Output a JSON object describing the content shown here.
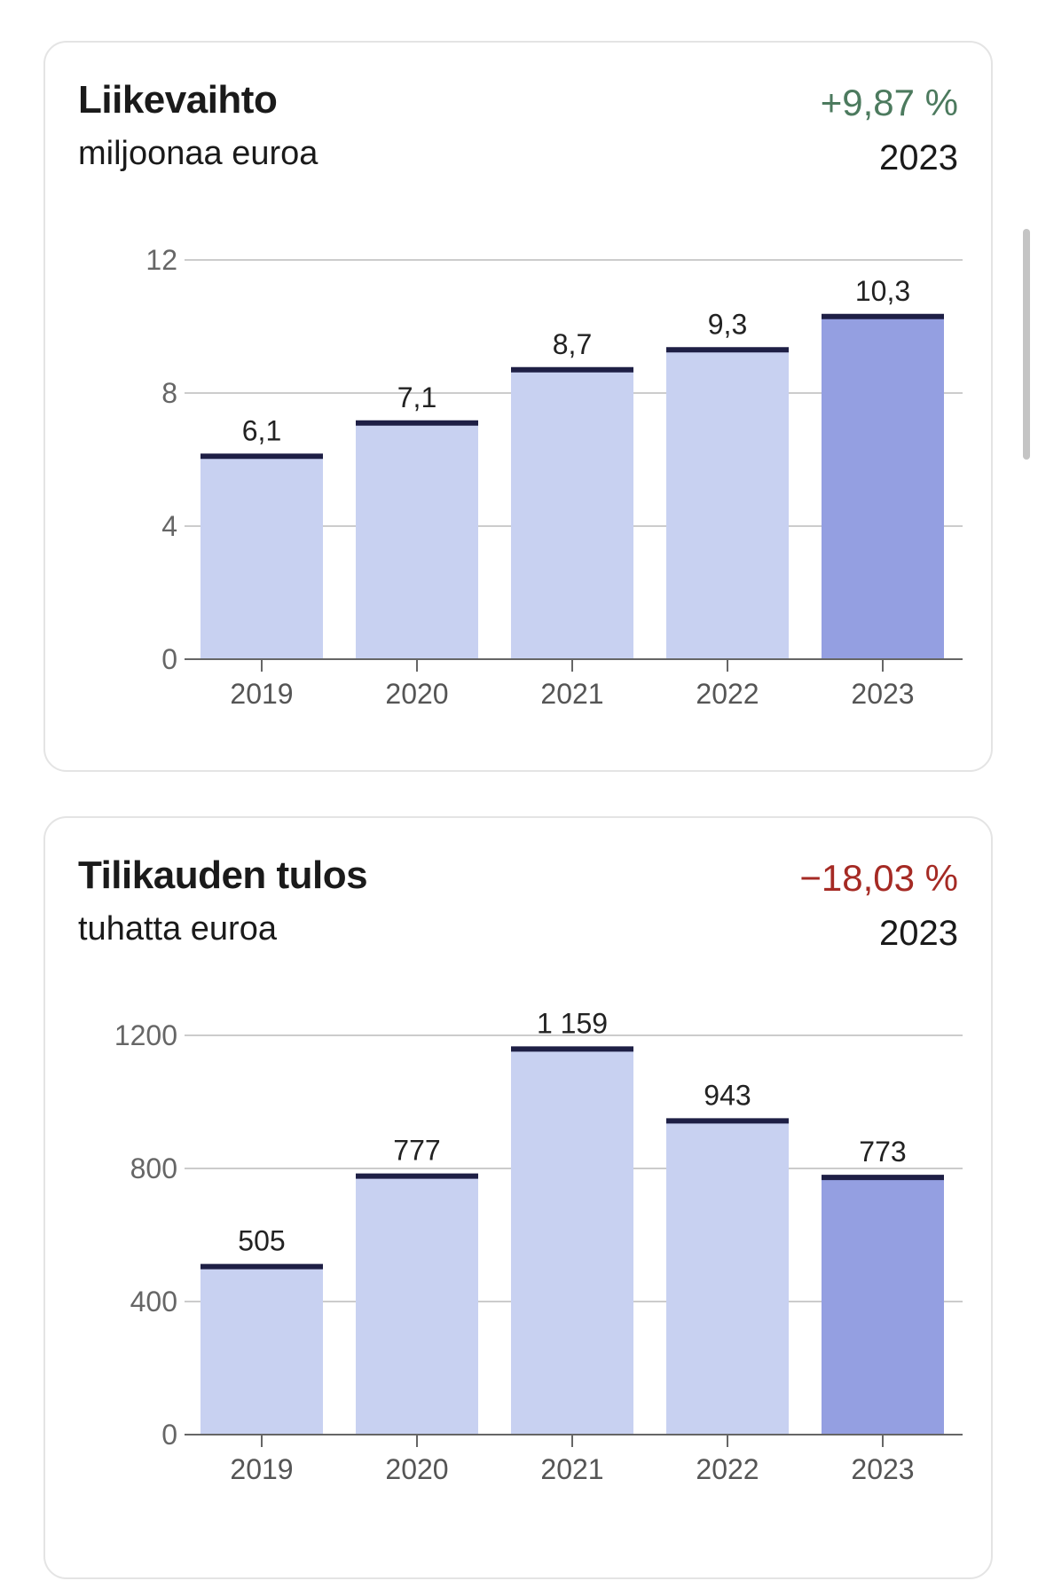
{
  "cards": [
    {
      "title": "Liikevaihto",
      "subtitle": "miljoonaa euroa",
      "change": "+9,87 %",
      "change_color": "#4c7a5e",
      "year": "2023"
    },
    {
      "title": "Tilikauden tulos",
      "subtitle": "tuhatta euroa",
      "change": "−18,03 %",
      "change_color": "#a52a24",
      "year": "2023"
    }
  ],
  "colors": {
    "bar": "#c8d1f1",
    "bar_highlight": "#949fe1",
    "bar_cap": "#1e1f45",
    "grid": "#cccccc",
    "axis": "#666666"
  },
  "chart_data": [
    {
      "type": "bar",
      "title": "Liikevaihto",
      "subtitle": "miljoonaa euroa",
      "categories": [
        "2019",
        "2020",
        "2021",
        "2022",
        "2023"
      ],
      "values": [
        6.1,
        7.1,
        8.7,
        9.3,
        10.3
      ],
      "value_labels": [
        "6,1",
        "7,1",
        "8,7",
        "9,3",
        "10,3"
      ],
      "yticks": [
        0,
        4,
        8,
        12
      ],
      "ylim": [
        0,
        12
      ],
      "highlight_index": 4,
      "grid": true
    },
    {
      "type": "bar",
      "title": "Tilikauden tulos",
      "subtitle": "tuhatta euroa",
      "categories": [
        "2019",
        "2020",
        "2021",
        "2022",
        "2023"
      ],
      "values": [
        505,
        777,
        1159,
        943,
        773
      ],
      "value_labels": [
        "505",
        "777",
        "1 159",
        "943",
        "773"
      ],
      "yticks": [
        0,
        400,
        800,
        1200
      ],
      "ylim": [
        0,
        1200
      ],
      "highlight_index": 4,
      "grid": true
    }
  ]
}
